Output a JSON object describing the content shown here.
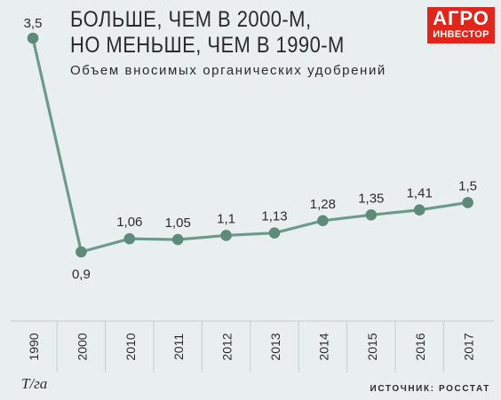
{
  "header": {
    "title_line1": "БОЛЬШЕ, ЧЕМ В 2000-М,",
    "title_line2": "НО МЕНЬШЕ, ЧЕМ В 1990-М",
    "subtitle": "Объем вносимых органических удобрений"
  },
  "logo": {
    "line1": "АГРО",
    "line2": "ИНВЕСТОР",
    "color": "#e0261b"
  },
  "footer": {
    "unit": "Т/га",
    "source": "ИСТОЧНИК: РОССТАТ"
  },
  "colors": {
    "background": "#e8efee",
    "line": "#6e9a8a",
    "point": "#5e8a7a",
    "grid": "#c3cfcc"
  },
  "chart_data": {
    "type": "line",
    "title": "БОЛЬШЕ, ЧЕМ В 2000-М, НО МЕНЬШЕ, ЧЕМ В 1990-М",
    "subtitle": "Объем вносимых органических удобрений",
    "categories": [
      "1990",
      "2000",
      "2010",
      "2011",
      "2012",
      "2013",
      "2014",
      "2015",
      "2016",
      "2017"
    ],
    "values": [
      3.5,
      0.9,
      1.06,
      1.05,
      1.1,
      1.13,
      1.28,
      1.35,
      1.41,
      1.5
    ],
    "labels": [
      "3,5",
      "0,9",
      "1,06",
      "1,05",
      "1,1",
      "1,13",
      "1,28",
      "1,35",
      "1,41",
      "1,5"
    ],
    "ylabel": "Т/га",
    "grid": "vertical"
  }
}
